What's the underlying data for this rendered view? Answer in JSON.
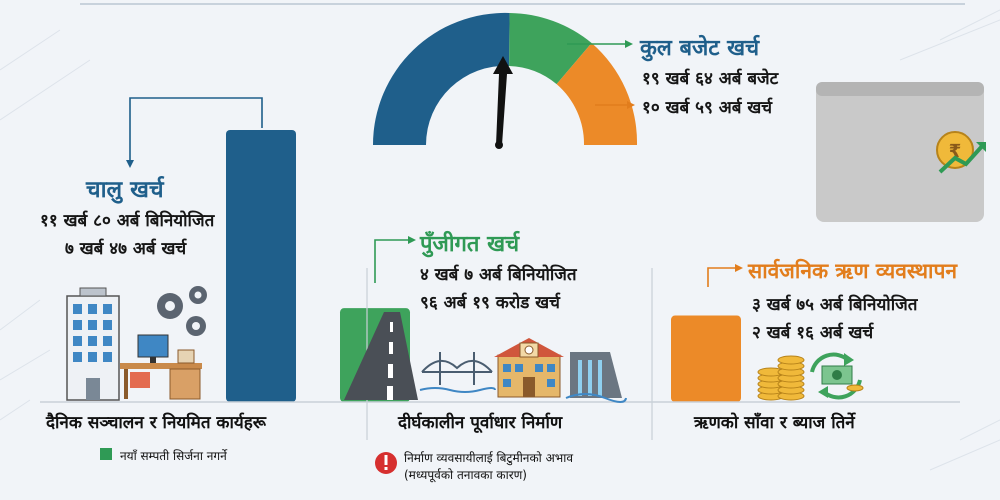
{
  "colors": {
    "blue": "#1f5f8b",
    "green": "#3ea35c",
    "orange": "#ec8a28",
    "bg": "#f1f4f8"
  },
  "gauge": {
    "title": "कुल बजेट खर्च",
    "allocated": "१९ खर्ब ६४ अर्ब बजेट",
    "spent": "१० खर्ब ५९ अर्ब खर्च"
  },
  "sections": [
    {
      "key": "current",
      "title": "चालु खर्च",
      "allocated": "११ खर्ब ८० अर्ब बिनियोजित",
      "spent": "७ खर्ब ४७ अर्ब खर्च",
      "category": "दैनिक सञ्चालन र नियमित कार्यहरू",
      "note": "नयाँ सम्पती सिर्जना नगर्ने",
      "color": "#1f5f8b"
    },
    {
      "key": "capital",
      "title": "पुँजीगत खर्च",
      "allocated": "४ खर्ब ७ अर्ब बिनियोजित",
      "spent": "९६ अर्ब १९ करोड खर्च",
      "category": "दीर्घकालीन पूर्वाधार निर्माण",
      "note_line1": "निर्माण व्यवसायीलाई बिटुमीनको अभाव",
      "note_line2": "(मध्यपूर्वको तनावका कारण)",
      "color": "#3ea35c"
    },
    {
      "key": "debt",
      "title": "सार्वजनिक ऋण व्यवस्थापन",
      "allocated": "३ खर्ब ७५ अर्ब बिनियोजित",
      "spent": "२ खर्ब १६ अर्ब खर्च",
      "category": "ऋणको साँवा र ब्याज तिर्ने",
      "color": "#ec8a28"
    }
  ],
  "chart_data": {
    "type": "bar",
    "categories": [
      "चालु खर्च",
      "पुँजीगत खर्च",
      "सार्वजनिक ऋण व्यवस्थापन"
    ],
    "series": [
      {
        "values": [
          11.8,
          4.07,
          3.75
        ]
      }
    ],
    "unit": "खर्ब",
    "gauge_total_allocated": 19.64,
    "gauge_total_spent": 10.59
  }
}
